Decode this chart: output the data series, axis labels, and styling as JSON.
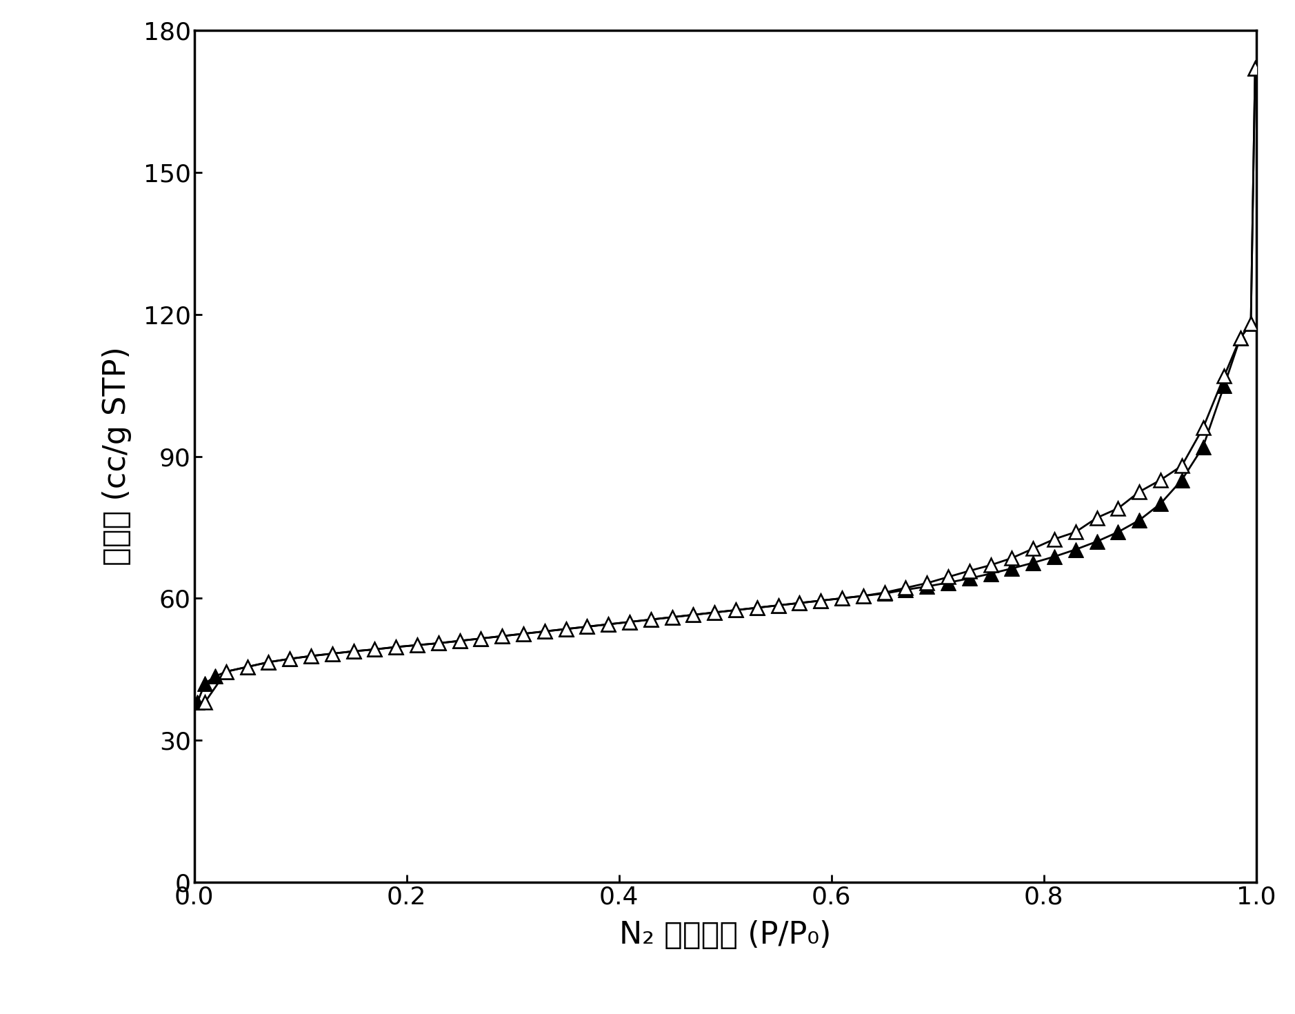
{
  "xlabel": "N₂ 相对压力 (P/P₀)",
  "ylabel": "吸附量 (cc/g STP)",
  "xlim": [
    0.0,
    1.0
  ],
  "ylim": [
    0,
    180
  ],
  "xticks": [
    0.0,
    0.2,
    0.4,
    0.6,
    0.8,
    1.0
  ],
  "yticks": [
    0,
    30,
    60,
    90,
    120,
    150,
    180
  ],
  "line_color": "#000000",
  "adsorption_x": [
    0.003,
    0.01,
    0.02,
    0.03,
    0.05,
    0.07,
    0.09,
    0.11,
    0.13,
    0.15,
    0.17,
    0.19,
    0.21,
    0.23,
    0.25,
    0.27,
    0.29,
    0.31,
    0.33,
    0.35,
    0.37,
    0.39,
    0.41,
    0.43,
    0.45,
    0.47,
    0.49,
    0.51,
    0.53,
    0.55,
    0.57,
    0.59,
    0.61,
    0.63,
    0.65,
    0.67,
    0.69,
    0.71,
    0.73,
    0.75,
    0.77,
    0.79,
    0.81,
    0.83,
    0.85,
    0.87,
    0.89,
    0.91,
    0.93,
    0.95,
    0.97,
    0.985,
    0.995,
    0.999
  ],
  "adsorption_y": [
    38.0,
    42.0,
    43.5,
    44.5,
    45.5,
    46.5,
    47.2,
    47.8,
    48.3,
    48.8,
    49.2,
    49.7,
    50.1,
    50.5,
    51.0,
    51.5,
    52.0,
    52.5,
    53.0,
    53.5,
    54.0,
    54.5,
    55.0,
    55.5,
    56.0,
    56.5,
    57.0,
    57.5,
    58.0,
    58.5,
    59.0,
    59.5,
    60.0,
    60.5,
    61.0,
    61.8,
    62.5,
    63.3,
    64.2,
    65.2,
    66.3,
    67.5,
    68.8,
    70.3,
    72.0,
    74.0,
    76.5,
    80.0,
    85.0,
    92.0,
    105.0,
    115.0,
    118.0,
    172.0
  ],
  "desorption_x": [
    0.999,
    0.995,
    0.985,
    0.97,
    0.95,
    0.93,
    0.91,
    0.89,
    0.87,
    0.85,
    0.83,
    0.81,
    0.79,
    0.77,
    0.75,
    0.73,
    0.71,
    0.69,
    0.67,
    0.65,
    0.63,
    0.61,
    0.59,
    0.57,
    0.55,
    0.53,
    0.51,
    0.49,
    0.47,
    0.45,
    0.43,
    0.41,
    0.39,
    0.37,
    0.35,
    0.33,
    0.31,
    0.29,
    0.27,
    0.25,
    0.23,
    0.21,
    0.19,
    0.17,
    0.15,
    0.13,
    0.11,
    0.09,
    0.07,
    0.05,
    0.03,
    0.01
  ],
  "desorption_y": [
    172.0,
    118.0,
    115.0,
    107.0,
    96.0,
    88.0,
    85.0,
    82.5,
    79.0,
    77.0,
    74.0,
    72.5,
    70.5,
    68.5,
    67.0,
    65.8,
    64.5,
    63.2,
    62.2,
    61.2,
    60.5,
    60.0,
    59.5,
    59.0,
    58.5,
    58.0,
    57.5,
    57.0,
    56.5,
    56.0,
    55.5,
    55.0,
    54.5,
    54.0,
    53.5,
    53.0,
    52.5,
    52.0,
    51.5,
    51.0,
    50.5,
    50.1,
    49.7,
    49.2,
    48.8,
    48.3,
    47.8,
    47.2,
    46.5,
    45.5,
    44.5,
    38.0
  ],
  "fontsize_label": 32,
  "fontsize_tick": 26,
  "linewidth": 2.0,
  "markersize_adsorption": 16,
  "markersize_desorption": 14,
  "figure_facecolor": "#ffffff",
  "axes_facecolor": "#ffffff",
  "spine_linewidth": 2.5
}
